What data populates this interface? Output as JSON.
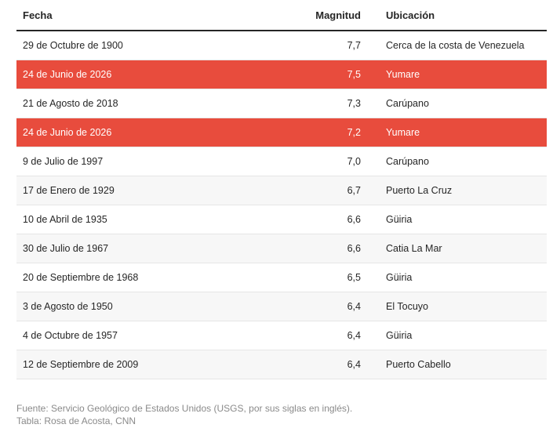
{
  "table": {
    "header": [
      "Fecha",
      "Magnitud",
      "Ubicación"
    ],
    "rows": [
      [
        "29 de Octubre de 1900",
        "7,7",
        "Cerca de la costa de Venezuela"
      ],
      [
        "24 de Junio de 2026",
        "7,5",
        "Yumare"
      ],
      [
        "21 de Agosto de 2018",
        "7,3",
        "Carúpano"
      ],
      [
        "24 de Junio de 2026",
        "7,2",
        "Yumare"
      ],
      [
        "9 de Julio de 1997",
        "7,0",
        "Carúpano"
      ],
      [
        "17 de Enero de 1929",
        "6,7",
        "Puerto La Cruz"
      ],
      [
        "10 de Abril de 1935",
        "6,6",
        "Güiria"
      ],
      [
        "30 de Julio de 1967",
        "6,6",
        "Catia La Mar"
      ],
      [
        "20 de Septiembre de 1968",
        "6,5",
        "Güiria"
      ],
      [
        "3 de Agosto de 1950",
        "6,4",
        "El Tocuyo"
      ],
      [
        "4 de Octubre de 1957",
        "6,4",
        "Güiria"
      ],
      [
        "12 de Septiembre de 2009",
        "6,4",
        "Puerto Cabello"
      ]
    ]
  },
  "footer": {
    "source": "Fuente: Servicio Geológico de Estados Unidos (USGS, por sus siglas en inglés).",
    "credit": "Tabla: Rosa de Acosta, CNN"
  }
}
